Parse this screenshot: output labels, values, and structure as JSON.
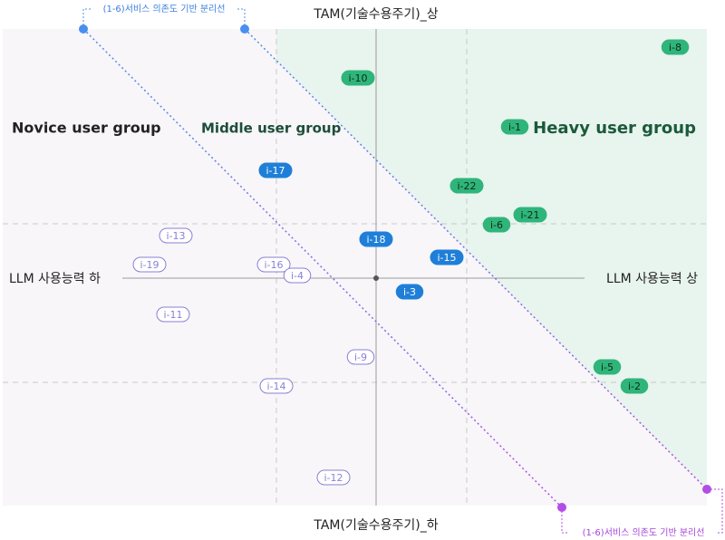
{
  "axes": {
    "top": "TAM(기술수용주기)_상",
    "bottom": "TAM(기술수용주기)_하",
    "left": "LLM 사용능력 하",
    "right": "LLM 사용능력 상"
  },
  "groups": [
    "Novice user group",
    "Middle user group",
    "Heavy user group"
  ],
  "divider_labels": [
    "(1-6)서비스 의존도 기반 분리선",
    "(1-6)서비스 의존도 기반 분리선"
  ],
  "points": [
    {
      "label": "i-8",
      "color": "#2fb57a",
      "style": "filled"
    },
    {
      "label": "i-10",
      "color": "#2fb57a",
      "style": "filled"
    },
    {
      "label": "i-1",
      "color": "#2fb57a",
      "style": "filled"
    },
    {
      "label": "i-17",
      "color": "#1f7fd8",
      "style": "filled"
    },
    {
      "label": "i-22",
      "color": "#2fb57a",
      "style": "filled"
    },
    {
      "label": "i-21",
      "color": "#2fb57a",
      "style": "filled"
    },
    {
      "label": "i-6",
      "color": "#2fb57a",
      "style": "filled"
    },
    {
      "label": "i-13",
      "color": "#8a80d4",
      "style": "outline"
    },
    {
      "label": "i-18",
      "color": "#1f7fd8",
      "style": "filled"
    },
    {
      "label": "i-15",
      "color": "#1f7fd8",
      "style": "filled"
    },
    {
      "label": "i-19",
      "color": "#8a80d4",
      "style": "outline"
    },
    {
      "label": "i-16",
      "color": "#8a80d4",
      "style": "outline"
    },
    {
      "label": "i-4",
      "color": "#8a80d4",
      "style": "outline"
    },
    {
      "label": "i-3",
      "color": "#1f7fd8",
      "style": "filled"
    },
    {
      "label": "i-11",
      "color": "#8a80d4",
      "style": "outline"
    },
    {
      "label": "i-9",
      "color": "#8a80d4",
      "style": "outline"
    },
    {
      "label": "i-5",
      "color": "#2fb57a",
      "style": "filled"
    },
    {
      "label": "i-2",
      "color": "#2fb57a",
      "style": "filled"
    },
    {
      "label": "i-14",
      "color": "#8a80d4",
      "style": "outline"
    },
    {
      "label": "i-12",
      "color": "#8a80d4",
      "style": "outline"
    }
  ]
}
